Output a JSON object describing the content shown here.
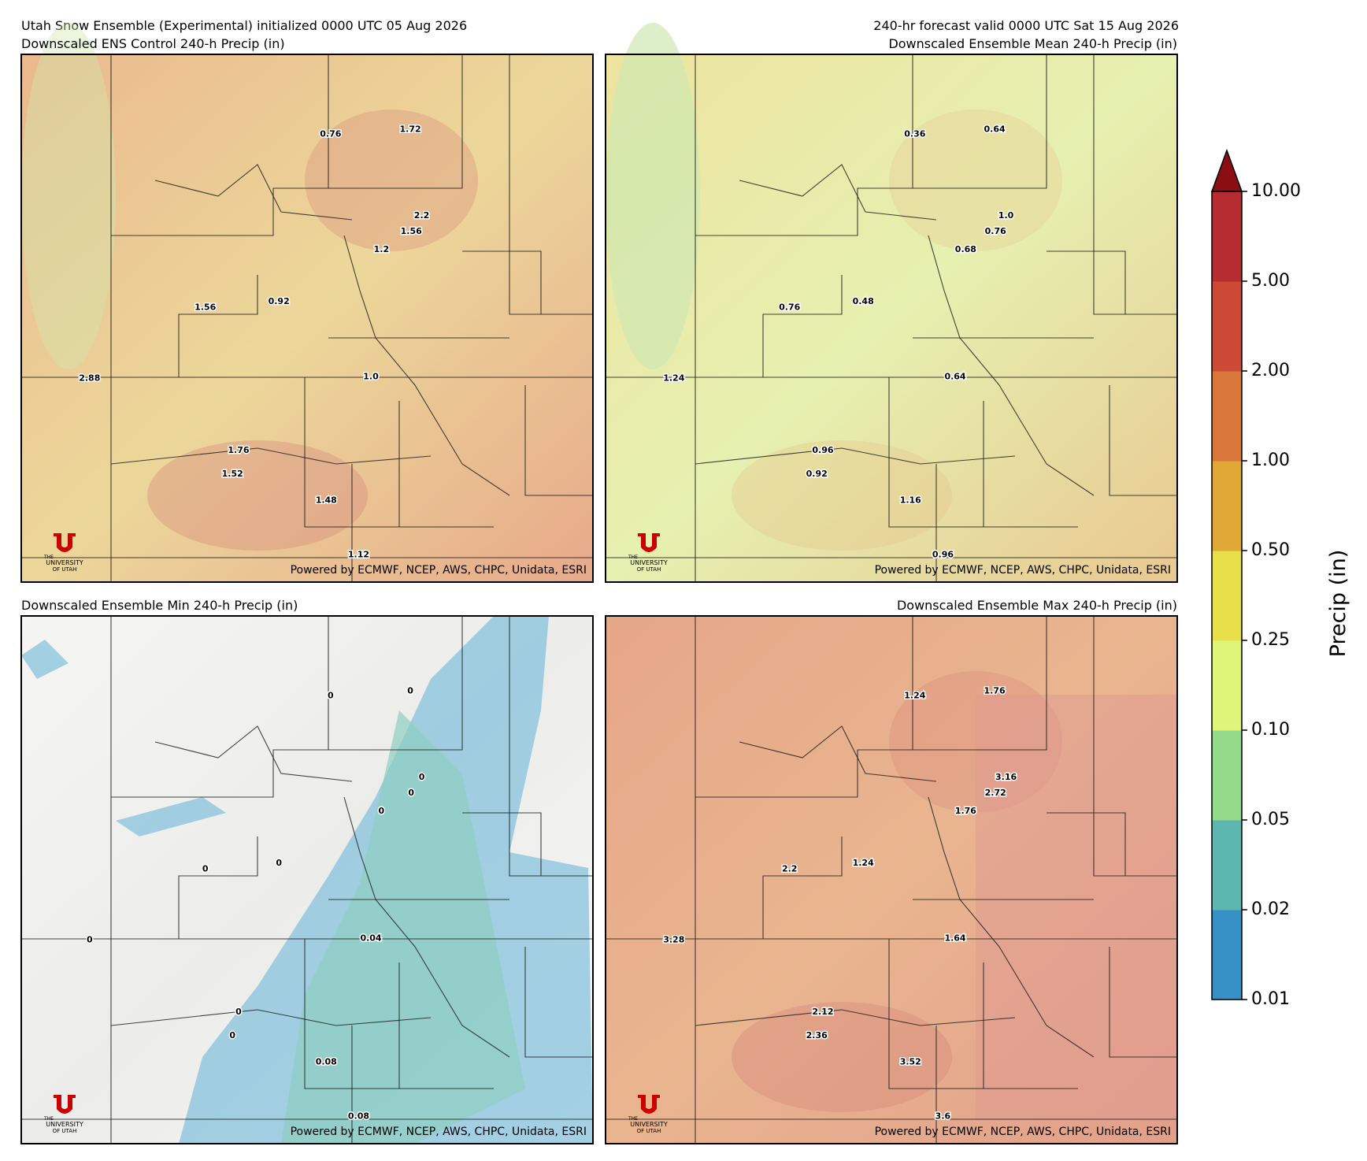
{
  "header": {
    "run_title": "Utah Snow Ensemble (Experimental) initialized 0000 UTC 05 Aug 2026",
    "valid_title": "240-hr forecast valid 0000 UTC Sat 15 Aug 2026"
  },
  "panels": [
    {
      "title": "Downscaled ENS Control 240-h Precip (in)",
      "point_labels": [
        "0.76",
        "1.72",
        "2.2",
        "1.56",
        "1.2",
        "1.56",
        "0.92",
        "2.88",
        "1.0",
        "1.76",
        "1.52",
        "1.48",
        "1.12"
      ]
    },
    {
      "title": "Downscaled Ensemble Mean 240-h Precip (in)",
      "point_labels": [
        "0.36",
        "0.64",
        "1.0",
        "0.76",
        "0.68",
        "0.76",
        "0.48",
        "1.24",
        "0.64",
        "0.96",
        "0.92",
        "1.16",
        "0.96"
      ]
    },
    {
      "title": "Downscaled Ensemble Min 240-h Precip (in)",
      "point_labels": [
        "0",
        "0",
        "0",
        "0",
        "0",
        "0",
        "0",
        "0",
        "0.04",
        "0",
        "0",
        "0.08",
        "0.08"
      ]
    },
    {
      "title": "Downscaled Ensemble Max 240-h Precip (in)",
      "point_labels": [
        "1.24",
        "1.76",
        "3.16",
        "2.72",
        "1.76",
        "2.2",
        "1.24",
        "3.28",
        "1.64",
        "2.12",
        "2.36",
        "3.52",
        "3.6"
      ]
    }
  ],
  "attribution": "Powered by ECMWF, NCEP, AWS, CHPC, Unidata, ESRI",
  "logo": {
    "line1": "THE",
    "line2": "UNIVERSITY",
    "line3": "OF UTAH"
  },
  "colorbar": {
    "label": "Precip (in)",
    "ticks": [
      "0.01",
      "0.02",
      "0.05",
      "0.10",
      "0.25",
      "0.50",
      "1.00",
      "2.00",
      "5.00",
      "10.00"
    ],
    "colors": [
      "#3891c6",
      "#5bb7b0",
      "#93db8b",
      "#dff57a",
      "#e8e04a",
      "#e0a834",
      "#d9763a",
      "#cc4a35",
      "#b72c31"
    ],
    "extend_color": "#8b0f12"
  }
}
